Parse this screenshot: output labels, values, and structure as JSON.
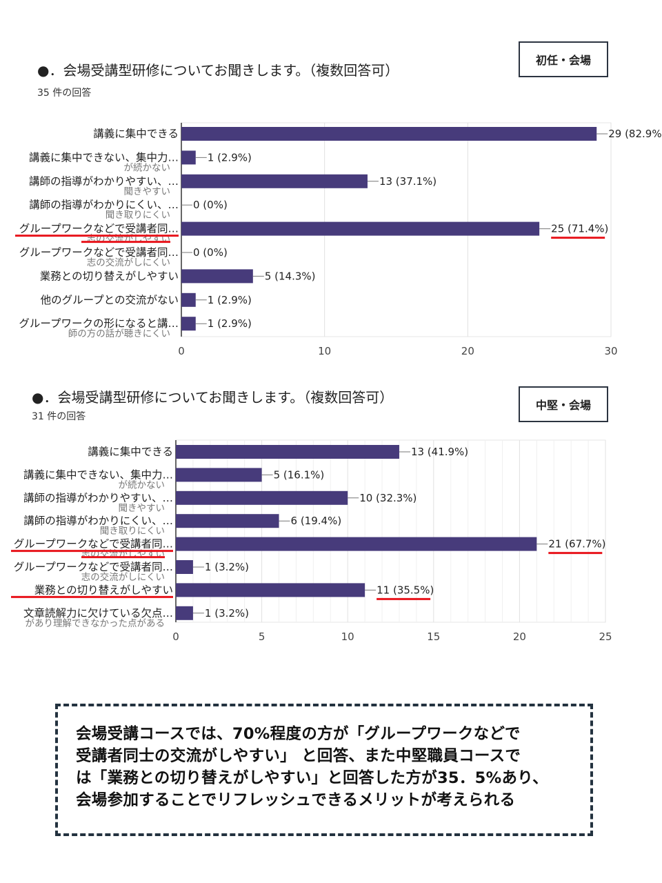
{
  "chart_data": [
    {
      "type": "bar",
      "orientation": "horizontal",
      "title": "●．会場受講型研修についてお聞きします。（複数回答可）",
      "subtitle": "35 件の回答",
      "tag": "初任・会場",
      "categories": [
        [
          "講義に集中できる",
          ""
        ],
        [
          "講義に集中できない、集中力…",
          "が続かない"
        ],
        [
          "講師の指導がわかりやすい、…",
          "聞きやすい"
        ],
        [
          "講師の指導がわかりにくい、…",
          "聞き取りにくい"
        ],
        [
          "グループワークなどで受講者同…",
          "志の交流がしやすい"
        ],
        [
          "グループワークなどで受講者同…",
          "志の交流がしにくい"
        ],
        [
          "業務との切り替えがしやすい",
          ""
        ],
        [
          "他のグループとの交流がない",
          ""
        ],
        [
          "グループワークの形になると講…",
          "師の方の話が聴きにくい"
        ]
      ],
      "values": [
        29,
        1,
        13,
        0,
        25,
        0,
        5,
        1,
        1
      ],
      "data_labels": [
        "29 (82.9%)",
        "1 (2.9%)",
        "13 (37.1%)",
        "0 (0%)",
        "25 (71.4%)",
        "0 (0%)",
        "5 (14.3%)",
        "1 (2.9%)",
        "1 (2.9%)"
      ],
      "xlim": [
        0,
        30
      ],
      "xticks": [
        "0",
        "10",
        "20",
        "30"
      ],
      "grid": true,
      "bar_color": "#473b7b",
      "highlight_color": "#e8141b",
      "highlighted": [
        4
      ]
    },
    {
      "type": "bar",
      "orientation": "horizontal",
      "title": "●．会場受講型研修についてお聞きします。（複数回答可）",
      "subtitle": "31 件の回答",
      "tag": "中堅・会場",
      "categories": [
        [
          "講義に集中できる",
          ""
        ],
        [
          "講義に集中できない、集中力…",
          "が続かない"
        ],
        [
          "講師の指導がわかりやすい、…",
          "聞きやすい"
        ],
        [
          "講師の指導がわかりにくい、…",
          "聞き取りにくい"
        ],
        [
          "グループワークなどで受講者同…",
          "志の交流がしやすい"
        ],
        [
          "グループワークなどで受講者同…",
          "志の交流がしにくい"
        ],
        [
          "業務との切り替えがしやすい",
          ""
        ],
        [
          "文章読解力に欠けている欠点…",
          "があり理解できなかった点がある"
        ]
      ],
      "values": [
        13,
        5,
        10,
        6,
        21,
        1,
        11,
        1
      ],
      "data_labels": [
        "13 (41.9%)",
        "5 (16.1%)",
        "10 (32.3%)",
        "6 (19.4%)",
        "21 (67.7%)",
        "1 (3.2%)",
        "11 (35.5%)",
        "1 (3.2%)"
      ],
      "xlim": [
        0,
        25
      ],
      "xticks": [
        "0",
        "5",
        "10",
        "15",
        "20",
        "25"
      ],
      "grid": true,
      "bar_color": "#473b7b",
      "highlight_color": "#e8141b",
      "highlighted": [
        4,
        6
      ]
    }
  ],
  "callout": {
    "lines": [
      "会場受講コースでは、70%程度の方が「グループワークなどで",
      "受講者同士の交流がしやすい」 と回答、また中堅職員コースで",
      "は「業務との切り替えがしやすい」と回答した方が35．5%あり、",
      "会場参加することでリフレッシュできるメリットが考えられる"
    ]
  }
}
